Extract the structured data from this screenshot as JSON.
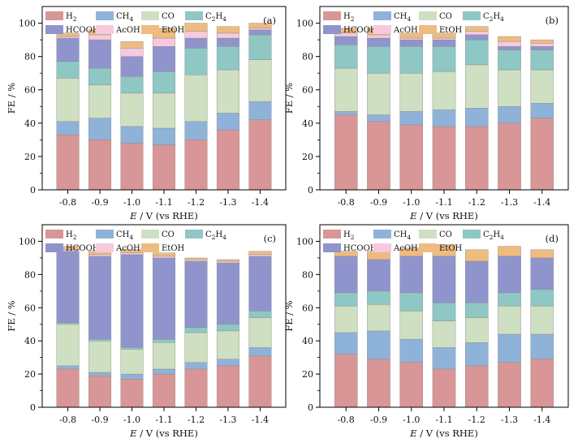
{
  "colors": {
    "H2": "#d89696",
    "CH4": "#8fb2d9",
    "CO": "#cfdfc2",
    "C2H4": "#8ec7c4",
    "HCOOH": "#8f94cc",
    "AcOH": "#f6c9dc",
    "EtOH": "#eebb80"
  },
  "chart_data": [
    {
      "type": "bar",
      "stacked": true,
      "panel_label": "(a)",
      "xlabel_italic": "E",
      "xlabel_rest": " / V (vs RHE)",
      "ylabel": "FE / %",
      "ylim": [
        0,
        110
      ],
      "yticks": [
        "0",
        "20",
        "40",
        "60",
        "80",
        "100"
      ],
      "categories": [
        "-0.8",
        "-0.9",
        "-1.0",
        "-1.1",
        "-1.2",
        "-1.3",
        "-1.4"
      ],
      "legend": [
        {
          "key": "H2",
          "main": "H",
          "sub": "2",
          "tail": ""
        },
        {
          "key": "CH4",
          "main": "CH",
          "sub": "4",
          "tail": ""
        },
        {
          "key": "CO",
          "main": "CO",
          "sub": "",
          "tail": ""
        },
        {
          "key": "C2H4",
          "main": "C",
          "sub": "2",
          "tail": "H4"
        },
        {
          "key": "HCOOH",
          "main": "HCOOH",
          "sub": "",
          "tail": ""
        },
        {
          "key": "AcOH",
          "main": "AcOH",
          "sub": "",
          "tail": ""
        },
        {
          "key": "EtOH",
          "main": "EtOH",
          "sub": "",
          "tail": ""
        }
      ],
      "series": [
        {
          "key": "H2",
          "values": [
            33,
            30,
            28,
            27,
            30,
            36,
            42
          ]
        },
        {
          "key": "CH4",
          "values": [
            8,
            13,
            10,
            10,
            11,
            10,
            11
          ]
        },
        {
          "key": "CO",
          "values": [
            26,
            20,
            20,
            21,
            28,
            26,
            25
          ]
        },
        {
          "key": "C2H4",
          "values": [
            10,
            10,
            10,
            13,
            16,
            14,
            15
          ]
        },
        {
          "key": "HCOOH",
          "values": [
            14,
            17,
            12,
            15,
            6,
            5,
            3
          ]
        },
        {
          "key": "AcOH",
          "values": [
            1,
            3,
            5,
            5,
            4,
            3,
            1
          ]
        },
        {
          "key": "EtOH",
          "values": [
            2,
            3,
            4,
            6,
            5,
            4,
            3
          ]
        }
      ]
    },
    {
      "type": "bar",
      "stacked": true,
      "panel_label": "(b)",
      "xlabel_italic": "E",
      "xlabel_rest": " / V (vs RHE)",
      "ylabel": "FE / %",
      "ylim": [
        0,
        110
      ],
      "yticks": [
        "0",
        "20",
        "40",
        "60",
        "80",
        "100"
      ],
      "categories": [
        "-0.8",
        "-0.9",
        "-1.0",
        "-1.1",
        "-1.2",
        "-1.3",
        "-1.4"
      ],
      "legend": [
        {
          "key": "H2",
          "main": "H",
          "sub": "2",
          "tail": ""
        },
        {
          "key": "CH4",
          "main": "CH",
          "sub": "4",
          "tail": ""
        },
        {
          "key": "CO",
          "main": "CO",
          "sub": "",
          "tail": ""
        },
        {
          "key": "C2H4",
          "main": "C",
          "sub": "2",
          "tail": "H4"
        },
        {
          "key": "HCOOH",
          "main": "HCOOH",
          "sub": "",
          "tail": ""
        },
        {
          "key": "AcOH",
          "main": "AcOH",
          "sub": "",
          "tail": ""
        },
        {
          "key": "EtOH",
          "main": "EtOH",
          "sub": "",
          "tail": ""
        }
      ],
      "series": [
        {
          "key": "H2",
          "values": [
            45,
            41,
            39,
            38,
            38,
            40,
            43
          ]
        },
        {
          "key": "CH4",
          "values": [
            2,
            4,
            8,
            10,
            11,
            10,
            9
          ]
        },
        {
          "key": "CO",
          "values": [
            26,
            25,
            23,
            23,
            26,
            22,
            20
          ]
        },
        {
          "key": "C2H4",
          "values": [
            14,
            16,
            16,
            15,
            15,
            12,
            12
          ]
        },
        {
          "key": "HCOOH",
          "values": [
            5,
            5,
            4,
            4,
            3,
            2,
            2
          ]
        },
        {
          "key": "AcOH",
          "values": [
            2,
            2,
            1,
            1,
            2,
            3,
            2
          ]
        },
        {
          "key": "EtOH",
          "values": [
            3,
            4,
            3,
            3,
            3,
            3,
            2
          ]
        }
      ]
    },
    {
      "type": "bar",
      "stacked": true,
      "panel_label": "(c)",
      "xlabel_italic": "E",
      "xlabel_rest": " / V (vs RHE)",
      "ylabel": "FE / %",
      "ylim": [
        0,
        110
      ],
      "yticks": [
        "0",
        "20",
        "40",
        "60",
        "80",
        "100"
      ],
      "categories": [
        "-0.8",
        "-0.9",
        "-1.0",
        "-1.1",
        "-1.2",
        "-1.3",
        "-1.4"
      ],
      "legend": [
        {
          "key": "H2",
          "main": "H",
          "sub": "2",
          "tail": ""
        },
        {
          "key": "CH4",
          "main": "CH",
          "sub": "4",
          "tail": ""
        },
        {
          "key": "CO",
          "main": "CO",
          "sub": "",
          "tail": ""
        },
        {
          "key": "C2H4",
          "main": "C",
          "sub": "2",
          "tail": "H4"
        },
        {
          "key": "HCOOH",
          "main": "HCOOH",
          "sub": "",
          "tail": ""
        },
        {
          "key": "AcOH",
          "main": "AcOH",
          "sub": "",
          "tail": ""
        },
        {
          "key": "EtOH",
          "main": "EtOH",
          "sub": "",
          "tail": ""
        }
      ],
      "series": [
        {
          "key": "H2",
          "values": [
            23,
            19,
            17,
            20,
            23,
            25,
            31
          ]
        },
        {
          "key": "CH4",
          "values": [
            2,
            2,
            3,
            3,
            4,
            4,
            5
          ]
        },
        {
          "key": "CO",
          "values": [
            25,
            19,
            15,
            16,
            18,
            17,
            18
          ]
        },
        {
          "key": "C2H4",
          "values": [
            1,
            1,
            1,
            2,
            3,
            4,
            4
          ]
        },
        {
          "key": "HCOOH",
          "values": [
            43,
            50,
            56,
            49,
            40,
            37,
            33
          ]
        },
        {
          "key": "AcOH",
          "values": [
            1,
            1,
            1,
            1,
            1,
            1,
            1
          ]
        },
        {
          "key": "EtOH",
          "values": [
            2,
            2,
            2,
            2,
            1,
            1,
            2
          ]
        }
      ]
    },
    {
      "type": "bar",
      "stacked": true,
      "panel_label": "(d)",
      "xlabel_italic": "E",
      "xlabel_rest": " / V (vs RHE)",
      "ylabel": "FE / %",
      "ylim": [
        0,
        110
      ],
      "yticks": [
        "0",
        "20",
        "40",
        "60",
        "80",
        "100"
      ],
      "categories": [
        "-0.8",
        "-0.9",
        "-1.0",
        "-1.1",
        "-1.2",
        "-1.3",
        "-1.4"
      ],
      "legend": [
        {
          "key": "H2",
          "main": "H",
          "sub": "2",
          "tail": ""
        },
        {
          "key": "CH4",
          "main": "CH",
          "sub": "4",
          "tail": ""
        },
        {
          "key": "CO",
          "main": "CO",
          "sub": "",
          "tail": ""
        },
        {
          "key": "C2H4",
          "main": "C",
          "sub": "2",
          "tail": "H4"
        },
        {
          "key": "HCOOH",
          "main": "HCOOH",
          "sub": "",
          "tail": ""
        },
        {
          "key": "AcOH",
          "main": "AcOH",
          "sub": "",
          "tail": ""
        },
        {
          "key": "EtOH",
          "main": "EtOH",
          "sub": "",
          "tail": ""
        }
      ],
      "series": [
        {
          "key": "H2",
          "values": [
            32,
            29,
            27,
            23,
            25,
            27,
            29
          ]
        },
        {
          "key": "CH4",
          "values": [
            13,
            17,
            14,
            13,
            14,
            17,
            15
          ]
        },
        {
          "key": "CO",
          "values": [
            16,
            16,
            17,
            16,
            15,
            17,
            17
          ]
        },
        {
          "key": "C2H4",
          "values": [
            8,
            8,
            11,
            11,
            9,
            8,
            10
          ]
        },
        {
          "key": "HCOOH",
          "values": [
            22,
            19,
            22,
            28,
            25,
            22,
            19
          ]
        },
        {
          "key": "AcOH",
          "values": [
            0,
            0,
            0,
            0,
            0,
            0,
            0
          ]
        },
        {
          "key": "EtOH",
          "values": [
            3,
            5,
            5,
            7,
            7,
            6,
            5
          ]
        }
      ]
    }
  ]
}
